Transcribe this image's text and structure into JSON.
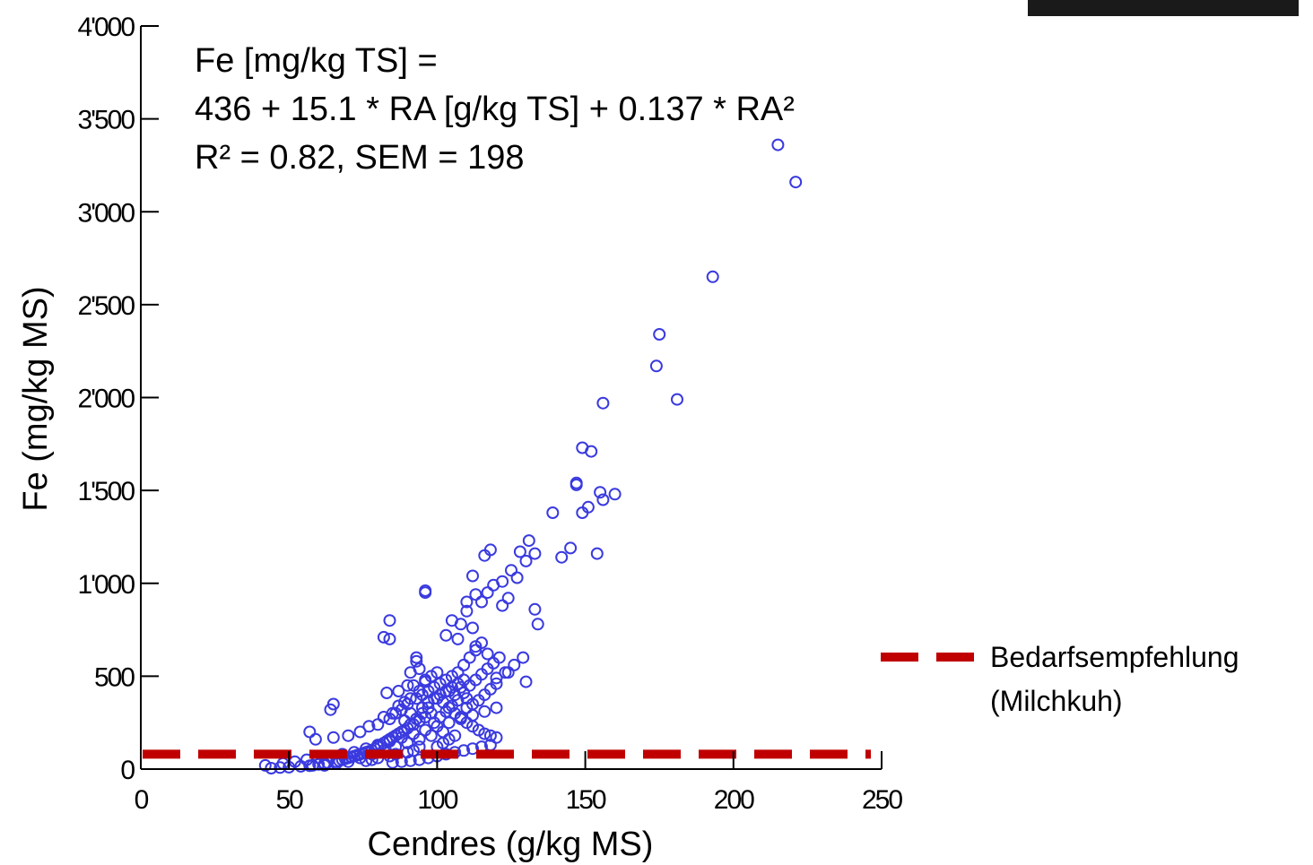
{
  "chart_data": {
    "type": "scatter",
    "xlabel": "Cendres (g/kg MS)",
    "ylabel": "Fe (mg/kg MS)",
    "xlim": [
      0,
      250
    ],
    "ylim": [
      0,
      4000
    ],
    "x_ticks": [
      0,
      50,
      100,
      150,
      200,
      250
    ],
    "x_tick_labels": [
      "0",
      "50",
      "100",
      "150",
      "200",
      "250"
    ],
    "y_ticks": [
      0,
      500,
      1000,
      1500,
      2000,
      2500,
      3000,
      3500,
      4000
    ],
    "y_tick_labels": [
      "0",
      "500",
      "1'000",
      "1'500",
      "2'000",
      "2'500",
      "3'000",
      "3'500",
      "4'000"
    ],
    "grid": false,
    "annotation_lines": [
      "Fe [mg/kg TS] =",
      "436 + 15.1 * RA [g/kg TS] + 0.137 * RA²",
      "R² = 0.82, SEM = 198"
    ],
    "reference_line": {
      "y": 80,
      "color": "#c00000",
      "style": "dashed",
      "label_lines": [
        "Bedarfsempfehlung",
        "(Milchkuh)"
      ]
    },
    "series": [
      {
        "marker": "open-circle",
        "color": "#3a3ae0",
        "points": [
          [
            215,
            3360
          ],
          [
            221,
            3160
          ],
          [
            193,
            2650
          ],
          [
            175,
            2340
          ],
          [
            174,
            2170
          ],
          [
            181,
            1990
          ],
          [
            156,
            1970
          ],
          [
            149,
            1730
          ],
          [
            152,
            1710
          ],
          [
            147,
            1540
          ],
          [
            147,
            1530
          ],
          [
            151,
            1410
          ],
          [
            149,
            1380
          ],
          [
            155,
            1490
          ],
          [
            156,
            1450
          ],
          [
            160,
            1480
          ],
          [
            139,
            1380
          ],
          [
            145,
            1190
          ],
          [
            142,
            1140
          ],
          [
            154,
            1160
          ],
          [
            131,
            1230
          ],
          [
            128,
            1170
          ],
          [
            133,
            1160
          ],
          [
            130,
            1120
          ],
          [
            118,
            1180
          ],
          [
            116,
            1150
          ],
          [
            125,
            1070
          ],
          [
            127,
            1030
          ],
          [
            122,
            1010
          ],
          [
            119,
            990
          ],
          [
            112,
            1040
          ],
          [
            113,
            940
          ],
          [
            110,
            900
          ],
          [
            117,
            950
          ],
          [
            124,
            920
          ],
          [
            122,
            880
          ],
          [
            133,
            860
          ],
          [
            134,
            780
          ],
          [
            115,
            900
          ],
          [
            110,
            850
          ],
          [
            105,
            800
          ],
          [
            108,
            780
          ],
          [
            112,
            760
          ],
          [
            103,
            720
          ],
          [
            107,
            700
          ],
          [
            113,
            660
          ],
          [
            117,
            620
          ],
          [
            129,
            600
          ],
          [
            124,
            520
          ],
          [
            120,
            490
          ],
          [
            130,
            470
          ],
          [
            96,
            960
          ],
          [
            96,
            950
          ],
          [
            84,
            800
          ],
          [
            82,
            710
          ],
          [
            84,
            700
          ],
          [
            93,
            600
          ],
          [
            93,
            580
          ],
          [
            94,
            540
          ],
          [
            91,
            520
          ],
          [
            96,
            470
          ],
          [
            90,
            450
          ],
          [
            87,
            420
          ],
          [
            83,
            410
          ],
          [
            65,
            350
          ],
          [
            64,
            320
          ],
          [
            57,
            200
          ],
          [
            59,
            160
          ],
          [
            65,
            170
          ],
          [
            70,
            180
          ],
          [
            74,
            200
          ],
          [
            77,
            230
          ],
          [
            80,
            240
          ],
          [
            82,
            280
          ],
          [
            85,
            300
          ],
          [
            88,
            320
          ],
          [
            90,
            350
          ],
          [
            93,
            380
          ],
          [
            95,
            400
          ],
          [
            97,
            420
          ],
          [
            99,
            440
          ],
          [
            101,
            460
          ],
          [
            103,
            480
          ],
          [
            105,
            500
          ],
          [
            107,
            520
          ],
          [
            109,
            560
          ],
          [
            111,
            600
          ],
          [
            113,
            640
          ],
          [
            115,
            680
          ],
          [
            100,
            380
          ],
          [
            102,
            360
          ],
          [
            104,
            330
          ],
          [
            106,
            300
          ],
          [
            108,
            280
          ],
          [
            110,
            250
          ],
          [
            112,
            230
          ],
          [
            114,
            210
          ],
          [
            116,
            190
          ],
          [
            118,
            180
          ],
          [
            120,
            170
          ],
          [
            98,
            300
          ],
          [
            96,
            280
          ],
          [
            94,
            260
          ],
          [
            92,
            240
          ],
          [
            90,
            220
          ],
          [
            88,
            200
          ],
          [
            86,
            180
          ],
          [
            84,
            160
          ],
          [
            82,
            140
          ],
          [
            80,
            120
          ],
          [
            78,
            100
          ],
          [
            76,
            90
          ],
          [
            74,
            80
          ],
          [
            72,
            70
          ],
          [
            70,
            60
          ],
          [
            68,
            50
          ],
          [
            66,
            40
          ],
          [
            62,
            30
          ],
          [
            58,
            20
          ],
          [
            54,
            15
          ],
          [
            50,
            10
          ],
          [
            47,
            8
          ],
          [
            44,
            5
          ],
          [
            42,
            20
          ],
          [
            48,
            30
          ],
          [
            52,
            40
          ],
          [
            56,
            50
          ],
          [
            60,
            60
          ],
          [
            64,
            70
          ],
          [
            68,
            80
          ],
          [
            72,
            90
          ],
          [
            76,
            110
          ],
          [
            80,
            130
          ],
          [
            84,
            150
          ],
          [
            88,
            170
          ],
          [
            92,
            190
          ],
          [
            96,
            210
          ],
          [
            100,
            230
          ],
          [
            104,
            250
          ],
          [
            108,
            270
          ],
          [
            112,
            290
          ],
          [
            116,
            310
          ],
          [
            120,
            330
          ],
          [
            106,
            400
          ],
          [
            104,
            420
          ],
          [
            108,
            440
          ],
          [
            110,
            380
          ],
          [
            102,
            200
          ],
          [
            98,
            180
          ],
          [
            94,
            160
          ],
          [
            90,
            140
          ],
          [
            86,
            120
          ],
          [
            82,
            100
          ],
          [
            78,
            80
          ],
          [
            74,
            60
          ],
          [
            70,
            40
          ],
          [
            66,
            30
          ],
          [
            62,
            20
          ],
          [
            89,
            260
          ],
          [
            91,
            300
          ],
          [
            95,
            330
          ],
          [
            97,
            360
          ],
          [
            99,
            250
          ],
          [
            101,
            280
          ],
          [
            103,
            310
          ],
          [
            105,
            340
          ],
          [
            107,
            370
          ],
          [
            109,
            410
          ],
          [
            111,
            450
          ],
          [
            113,
            480
          ],
          [
            115,
            510
          ],
          [
            117,
            540
          ],
          [
            119,
            570
          ],
          [
            121,
            600
          ],
          [
            109,
            480
          ],
          [
            107,
            460
          ],
          [
            105,
            440
          ],
          [
            103,
            420
          ],
          [
            101,
            400
          ],
          [
            99,
            380
          ],
          [
            97,
            330
          ],
          [
            95,
            300
          ],
          [
            93,
            270
          ],
          [
            91,
            240
          ],
          [
            89,
            210
          ],
          [
            87,
            190
          ],
          [
            85,
            170
          ],
          [
            83,
            150
          ],
          [
            81,
            130
          ],
          [
            79,
            110
          ],
          [
            77,
            95
          ],
          [
            75,
            85
          ],
          [
            73,
            75
          ],
          [
            71,
            65
          ],
          [
            69,
            55
          ],
          [
            67,
            45
          ],
          [
            63,
            35
          ],
          [
            60,
            25
          ],
          [
            57,
            18
          ],
          [
            118,
            130
          ],
          [
            115,
            120
          ],
          [
            112,
            110
          ],
          [
            109,
            100
          ],
          [
            106,
            90
          ],
          [
            103,
            80
          ],
          [
            100,
            70
          ],
          [
            97,
            60
          ],
          [
            94,
            50
          ],
          [
            91,
            45
          ],
          [
            88,
            40
          ],
          [
            85,
            35
          ],
          [
            100,
            120
          ],
          [
            102,
            140
          ],
          [
            104,
            160
          ],
          [
            106,
            180
          ],
          [
            94,
            120
          ],
          [
            92,
            100
          ],
          [
            90,
            90
          ],
          [
            86,
            80
          ],
          [
            84,
            70
          ],
          [
            80,
            60
          ],
          [
            78,
            50
          ],
          [
            76,
            45
          ],
          [
            110,
            330
          ],
          [
            112,
            350
          ],
          [
            114,
            370
          ],
          [
            116,
            400
          ],
          [
            118,
            430
          ],
          [
            120,
            460
          ],
          [
            123,
            520
          ],
          [
            126,
            560
          ],
          [
            98,
            500
          ],
          [
            100,
            520
          ],
          [
            96,
            480
          ],
          [
            92,
            450
          ],
          [
            94,
            420
          ],
          [
            91,
            380
          ],
          [
            89,
            360
          ],
          [
            87,
            340
          ],
          [
            86,
            300
          ],
          [
            84,
            270
          ]
        ]
      }
    ]
  },
  "decor": {
    "corner_block_color": "#1a1a1a"
  }
}
